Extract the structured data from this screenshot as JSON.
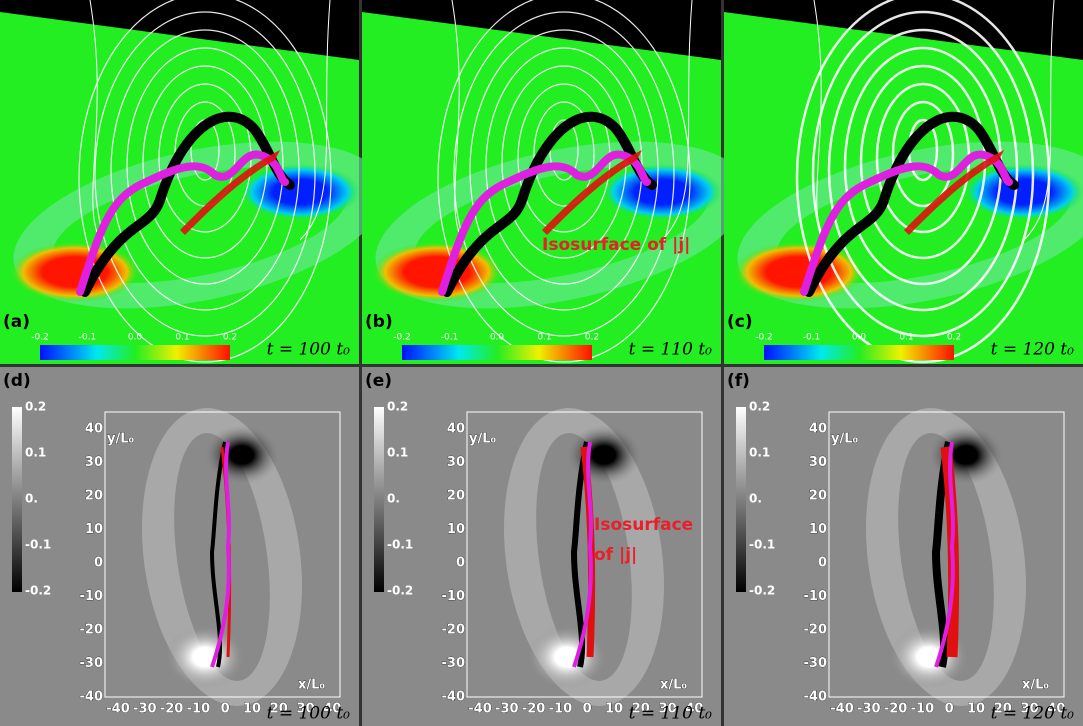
{
  "top_row": [
    {
      "label": "(a)",
      "time": "t = 100 t₀",
      "colorbar_ticks": [
        "-0.2",
        "-0.1",
        "0.0",
        "0.1",
        "0.2"
      ]
    },
    {
      "label": "(b)",
      "time": "t = 110 t₀",
      "colorbar_ticks": [
        "-0.2",
        "-0.1",
        "0.0",
        "0.1",
        "0.2"
      ],
      "annotation": "Isosurface of |j|"
    },
    {
      "label": "(c)",
      "time": "t = 120 t₀",
      "colorbar_ticks": [
        "-0.2",
        "-0.1",
        "0.0",
        "0.1",
        "0.2"
      ]
    }
  ],
  "bottom_row": [
    {
      "label": "(d)",
      "time": "t = 100 t₀",
      "colorbar_ticks": [
        "0.2",
        "0.1",
        "0.",
        "-0.1",
        "-0.2"
      ],
      "y_label": "y/L₀",
      "x_label": "x/L₀",
      "y_ticks": [
        "40",
        "30",
        "20",
        "10",
        "0",
        "-10",
        "-20",
        "-30",
        "-40"
      ],
      "x_ticks": [
        "-40",
        "-30",
        "-20",
        "-10",
        "0",
        "10",
        "20",
        "30",
        "40"
      ]
    },
    {
      "label": "(e)",
      "time": "t = 110 t₀",
      "colorbar_ticks": [
        "0.2",
        "0.1",
        "0.",
        "-0.1",
        "-0.2"
      ],
      "y_label": "y/L₀",
      "x_label": "x/L₀",
      "y_ticks": [
        "40",
        "30",
        "20",
        "10",
        "0",
        "-10",
        "-20",
        "-30",
        "-40"
      ],
      "x_ticks": [
        "-40",
        "-30",
        "-20",
        "-10",
        "0",
        "10",
        "20",
        "30",
        "40"
      ],
      "annotation": [
        "Isosurface",
        "of |j|"
      ]
    },
    {
      "label": "(f)",
      "time": "t = 120 t₀",
      "colorbar_ticks": [
        "0.2",
        "0.1",
        "0.",
        "-0.1",
        "-0.2"
      ],
      "y_label": "y/L₀",
      "x_label": "x/L₀",
      "y_ticks": [
        "40",
        "30",
        "20",
        "10",
        "0",
        "-10",
        "-20",
        "-30",
        "-40"
      ],
      "x_ticks": [
        "-40",
        "-30",
        "-20",
        "-10",
        "0",
        "10",
        "20",
        "30",
        "40"
      ]
    }
  ]
}
